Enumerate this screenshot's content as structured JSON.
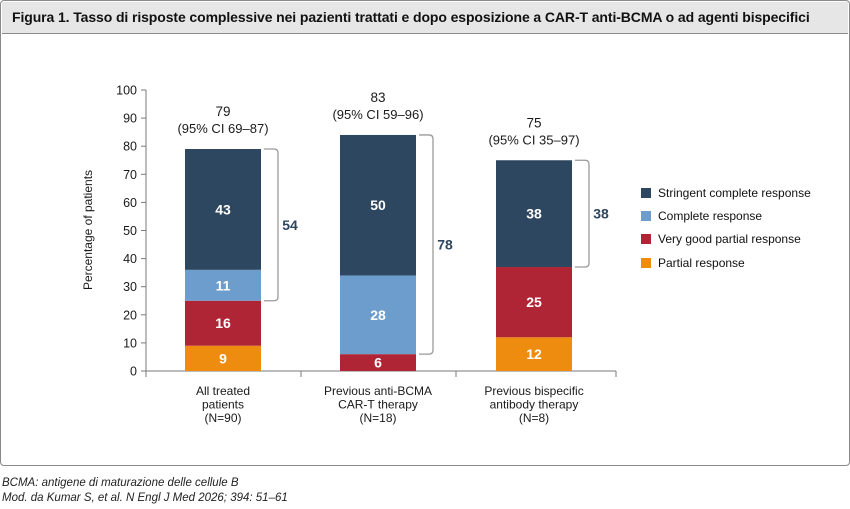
{
  "figure": {
    "title": "Figura 1. Tasso di risposte complessive nei pazienti trattati e dopo esposizione a CAR-T anti-BCMA o ad agenti bispecifici",
    "footnotes": [
      "BCMA: antigene di maturazione delle cellule B",
      "Mod. da Kumar S, et al. N Engl J Med 2026; 394: 51–61"
    ]
  },
  "colors": {
    "stringent": "#2e4760",
    "complete": "#6d9dcc",
    "vgpr": "#b02536",
    "partial": "#ee8c0f",
    "bracket": "#9a9a9a",
    "bracket_text": "#2e4760"
  },
  "chart_data": {
    "type": "bar",
    "stacked": true,
    "ylabel": "Percentage of patients",
    "xlabel": "",
    "ylim": [
      0,
      100
    ],
    "yticks": [
      0,
      10,
      20,
      30,
      40,
      50,
      60,
      70,
      80,
      90,
      100
    ],
    "categories": [
      [
        "All treated",
        "patients",
        "(N=90)"
      ],
      [
        "Previous anti-BCMA",
        "CAR-T therapy",
        "(N=18)"
      ],
      [
        "Previous bispecific",
        "antibody therapy",
        "(N=8)"
      ]
    ],
    "series": [
      {
        "name": "Partial response",
        "color_key": "partial",
        "values": [
          9,
          0,
          12
        ]
      },
      {
        "name": "Very good partial response",
        "color_key": "vgpr",
        "values": [
          16,
          6,
          25
        ]
      },
      {
        "name": "Complete response",
        "color_key": "complete",
        "values": [
          11,
          28,
          0
        ]
      },
      {
        "name": "Stringent complete response",
        "color_key": "stringent",
        "values": [
          43,
          50,
          38
        ]
      }
    ],
    "totals": [
      {
        "value": "79",
        "ci": "(95% CI 69–87)"
      },
      {
        "value": "83",
        "ci": "(95% CI 59–96)"
      },
      {
        "value": "75",
        "ci": "(95% CI 35–97)"
      }
    ],
    "brackets": [
      {
        "from": 25,
        "to": 79,
        "label": "54"
      },
      {
        "from": 6,
        "to": 84,
        "label": "78"
      },
      {
        "from": 37,
        "to": 75,
        "label": "38"
      }
    ],
    "legend_order": [
      3,
      2,
      1,
      0
    ],
    "legend_position": "right"
  }
}
